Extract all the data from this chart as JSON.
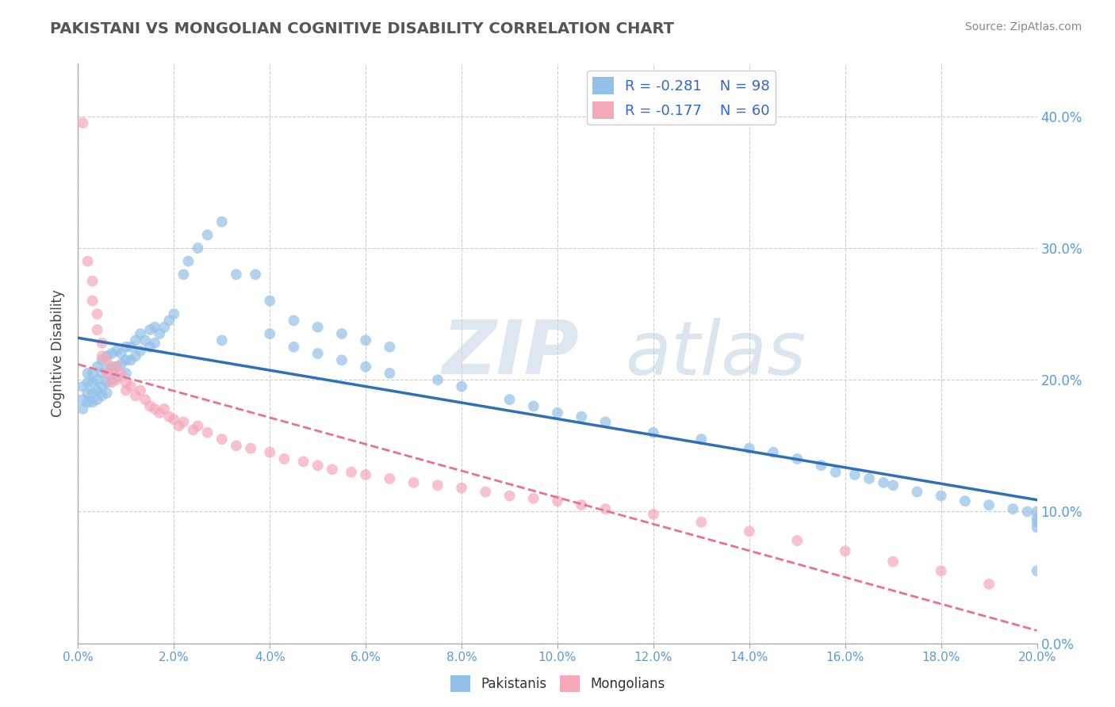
{
  "title": "PAKISTANI VS MONGOLIAN COGNITIVE DISABILITY CORRELATION CHART",
  "source": "Source: ZipAtlas.com",
  "xlim": [
    0.0,
    0.2
  ],
  "ylim": [
    0.0,
    0.44
  ],
  "pakistani_color": "#92c0e8",
  "mongolian_color": "#f4a8b8",
  "pakistani_R": -0.281,
  "pakistani_N": 98,
  "mongolian_R": -0.177,
  "mongolian_N": 60,
  "legend_label_pakistanis": "Pakistanis",
  "legend_label_mongolians": "Mongolians",
  "ylabel": "Cognitive Disability",
  "pakistani_line_color": "#3070b8",
  "mongolian_line_color": "#e87090",
  "grid_color": "#cccccc",
  "pakistani_x": [
    0.001,
    0.001,
    0.001,
    0.002,
    0.002,
    0.002,
    0.002,
    0.003,
    0.003,
    0.003,
    0.003,
    0.004,
    0.004,
    0.004,
    0.004,
    0.005,
    0.005,
    0.005,
    0.005,
    0.006,
    0.006,
    0.006,
    0.006,
    0.007,
    0.007,
    0.007,
    0.008,
    0.008,
    0.008,
    0.009,
    0.009,
    0.01,
    0.01,
    0.01,
    0.011,
    0.011,
    0.012,
    0.012,
    0.013,
    0.013,
    0.014,
    0.015,
    0.015,
    0.016,
    0.016,
    0.017,
    0.018,
    0.019,
    0.02,
    0.022,
    0.023,
    0.025,
    0.027,
    0.03,
    0.033,
    0.037,
    0.04,
    0.045,
    0.05,
    0.055,
    0.06,
    0.065,
    0.03,
    0.04,
    0.045,
    0.05,
    0.055,
    0.06,
    0.065,
    0.075,
    0.08,
    0.09,
    0.095,
    0.1,
    0.105,
    0.11,
    0.12,
    0.13,
    0.14,
    0.145,
    0.15,
    0.155,
    0.158,
    0.162,
    0.165,
    0.168,
    0.17,
    0.175,
    0.18,
    0.185,
    0.19,
    0.195,
    0.198,
    0.2,
    0.2,
    0.2,
    0.2,
    0.2
  ],
  "pakistani_y": [
    0.195,
    0.185,
    0.178,
    0.205,
    0.198,
    0.19,
    0.183,
    0.205,
    0.198,
    0.19,
    0.183,
    0.21,
    0.2,
    0.192,
    0.185,
    0.215,
    0.205,
    0.195,
    0.188,
    0.218,
    0.208,
    0.198,
    0.19,
    0.22,
    0.21,
    0.2,
    0.222,
    0.21,
    0.202,
    0.22,
    0.212,
    0.225,
    0.215,
    0.205,
    0.225,
    0.215,
    0.23,
    0.218,
    0.235,
    0.222,
    0.23,
    0.238,
    0.225,
    0.24,
    0.228,
    0.235,
    0.24,
    0.245,
    0.25,
    0.28,
    0.29,
    0.3,
    0.31,
    0.32,
    0.28,
    0.28,
    0.26,
    0.245,
    0.24,
    0.235,
    0.23,
    0.225,
    0.23,
    0.235,
    0.225,
    0.22,
    0.215,
    0.21,
    0.205,
    0.2,
    0.195,
    0.185,
    0.18,
    0.175,
    0.172,
    0.168,
    0.16,
    0.155,
    0.148,
    0.145,
    0.14,
    0.135,
    0.13,
    0.128,
    0.125,
    0.122,
    0.12,
    0.115,
    0.112,
    0.108,
    0.105,
    0.102,
    0.1,
    0.095,
    0.1,
    0.092,
    0.088,
    0.055
  ],
  "mongolian_x": [
    0.001,
    0.002,
    0.003,
    0.003,
    0.004,
    0.004,
    0.005,
    0.005,
    0.006,
    0.006,
    0.007,
    0.007,
    0.008,
    0.008,
    0.009,
    0.01,
    0.01,
    0.011,
    0.012,
    0.013,
    0.014,
    0.015,
    0.016,
    0.017,
    0.018,
    0.019,
    0.02,
    0.021,
    0.022,
    0.024,
    0.025,
    0.027,
    0.03,
    0.033,
    0.036,
    0.04,
    0.043,
    0.047,
    0.05,
    0.053,
    0.057,
    0.06,
    0.065,
    0.07,
    0.075,
    0.08,
    0.085,
    0.09,
    0.095,
    0.1,
    0.105,
    0.11,
    0.12,
    0.13,
    0.14,
    0.15,
    0.16,
    0.17,
    0.18,
    0.19
  ],
  "mongolian_y": [
    0.395,
    0.29,
    0.275,
    0.26,
    0.25,
    0.238,
    0.228,
    0.218,
    0.215,
    0.205,
    0.208,
    0.198,
    0.21,
    0.2,
    0.205,
    0.198,
    0.192,
    0.195,
    0.188,
    0.192,
    0.185,
    0.18,
    0.178,
    0.175,
    0.178,
    0.172,
    0.17,
    0.165,
    0.168,
    0.162,
    0.165,
    0.16,
    0.155,
    0.15,
    0.148,
    0.145,
    0.14,
    0.138,
    0.135,
    0.132,
    0.13,
    0.128,
    0.125,
    0.122,
    0.12,
    0.118,
    0.115,
    0.112,
    0.11,
    0.108,
    0.105,
    0.102,
    0.098,
    0.092,
    0.085,
    0.078,
    0.07,
    0.062,
    0.055,
    0.045
  ]
}
